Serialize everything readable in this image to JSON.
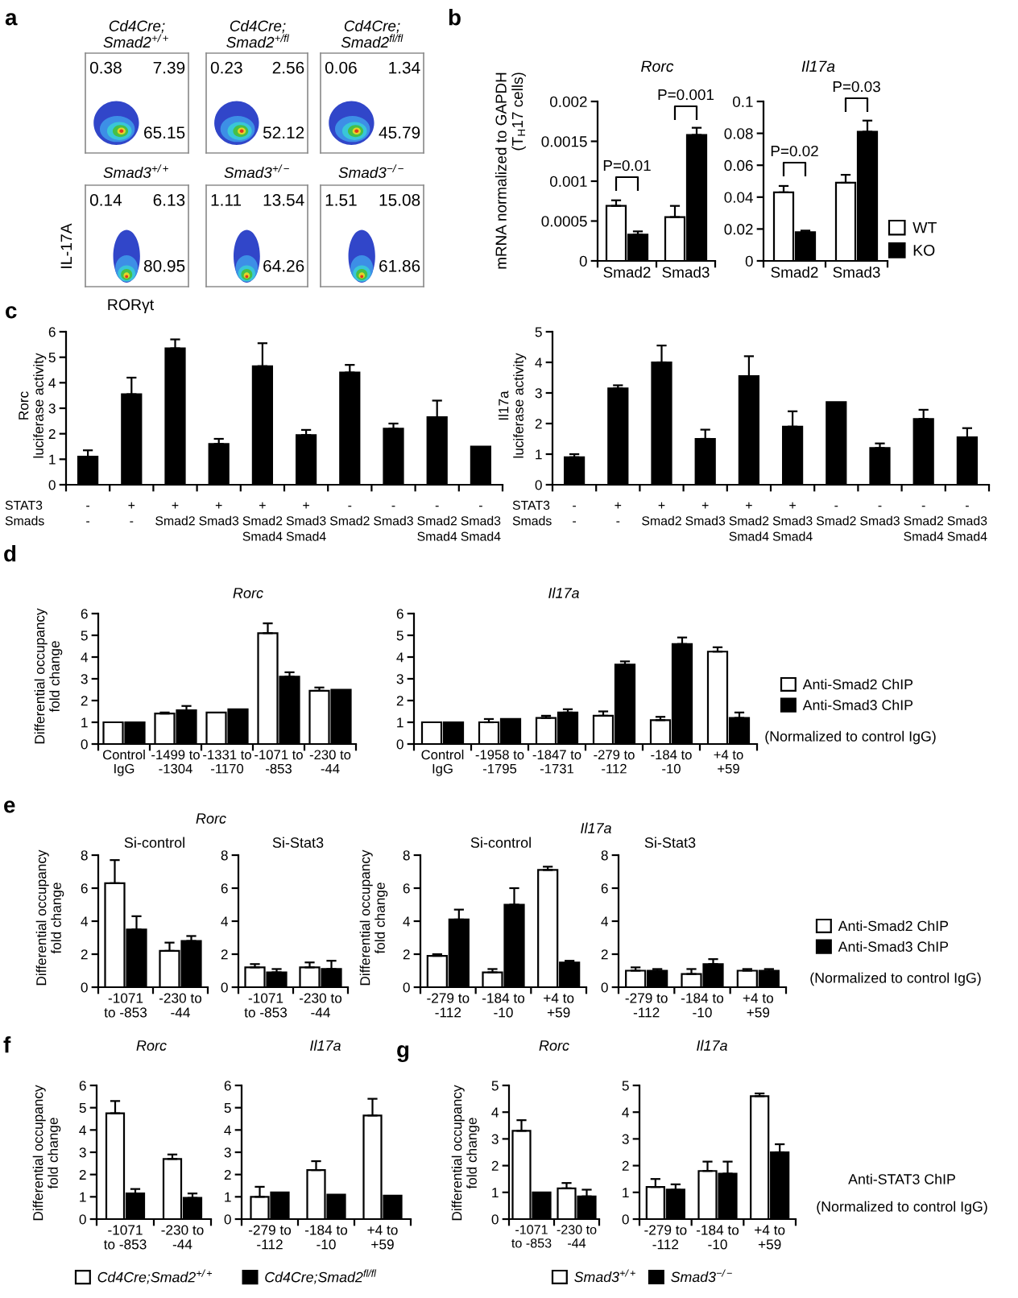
{
  "chart_data": [
    {
      "type": "other",
      "title": "Cd4Cre;\nSmad2$^{+/+}$",
      "annotations": [
        "a",
        "0.38",
        "7.39",
        "65.15"
      ]
    },
    {
      "type": "other",
      "title": "Cd4Cre;\nSmad2$^{+/fl}$",
      "annotations": [
        "0.23",
        "2.56",
        "52.12"
      ]
    },
    {
      "type": "other",
      "title": "Cd4Cre;\nSmad2$^{fl/fl}$",
      "annotations": [
        "0.06",
        "1.34",
        "45.79"
      ]
    },
    {
      "type": "other",
      "title": "Smad3$^{+/+}$",
      "xlabel": "RORγt",
      "ylabel": "IL-17A",
      "annotations": [
        "0.14",
        "6.13",
        "80.95"
      ]
    },
    {
      "type": "other",
      "title": "Smad3$^{+/−}$",
      "annotations": [
        "1.11",
        "13.54",
        "64.26"
      ]
    },
    {
      "type": "other",
      "title": "Smad3$^{−/−}$",
      "annotations": [
        "1.51",
        "15.08",
        "61.86"
      ]
    },
    {
      "type": "bar",
      "title": "Rorc",
      "ylabel": "mRNA normalized to GAPDH\n(T$_{H}$17 cells)",
      "categories": [
        "Smad2",
        "Smad3"
      ],
      "series": [
        {
          "color": "#ffffff",
          "values": [
            0.00069,
            0.00055
          ],
          "errors": [
            [
              0.00069,
              0.00076
            ],
            [
              0.00055,
              0.00069
            ]
          ]
        },
        {
          "color": "#000000",
          "values": [
            0.00033,
            0.00158
          ],
          "errors": [
            [
              0.00033,
              0.00037
            ],
            [
              0.00158,
              0.00167
            ]
          ]
        }
      ],
      "ylim": [
        0,
        0.002
      ],
      "yticks": [
        0,
        0.0005,
        0.001,
        0.0015,
        0.002
      ],
      "annotations": [
        "b",
        "P=0.01",
        "P=0.001"
      ]
    },
    {
      "type": "bar",
      "title": "Il17a",
      "categories": [
        "Smad2",
        "Smad3"
      ],
      "series": [
        {
          "name": "WT",
          "color": "#ffffff",
          "values": [
            0.043,
            0.049
          ],
          "errors": [
            [
              0.043,
              0.047
            ],
            [
              0.049,
              0.054
            ]
          ]
        },
        {
          "name": "KO",
          "color": "#000000",
          "values": [
            0.018,
            0.081
          ],
          "errors": [
            [
              0.018,
              0.019
            ],
            [
              0.081,
              0.088
            ]
          ]
        }
      ],
      "ylim": [
        0,
        0.1
      ],
      "yticks": [
        0,
        0.02,
        0.04,
        0.06,
        0.08,
        0.1
      ],
      "legend": "right",
      "annotations": [
        "P=0.02",
        "P=0.03"
      ]
    },
    {
      "type": "bar",
      "ylabel": "Rorc\nluciferase activity",
      "categories": [
        "-\n-",
        "+\n-",
        "+\nSmad2",
        "+\nSmad3",
        "+\nSmad2\nSmad4",
        "+\nSmad3\nSmad4",
        "-\nSmad2",
        "-\nSmad3",
        "-\nSmad2\nSmad4",
        "-\nSmad3\nSmad4"
      ],
      "color": "#000000",
      "values": [
        1.1,
        3.55,
        5.35,
        1.6,
        4.65,
        1.95,
        4.4,
        2.2,
        2.65,
        1.5
      ],
      "errors": [
        [
          1.1,
          1.35
        ],
        [
          3.55,
          4.2
        ],
        [
          5.35,
          5.7
        ],
        [
          1.6,
          1.8
        ],
        [
          4.65,
          5.55
        ],
        [
          1.95,
          2.15
        ],
        [
          4.4,
          4.7
        ],
        [
          2.2,
          2.4
        ],
        [
          2.65,
          3.3
        ],
        null
      ],
      "ylim": [
        0,
        6
      ],
      "yticks": [
        0,
        1,
        2,
        3,
        4,
        5,
        6
      ],
      "annotations": [
        "c",
        "STAT3\nSmads"
      ]
    },
    {
      "type": "bar",
      "ylabel": "Il17a\nluciferase activity",
      "categories": [
        "-\n-",
        "+\n-",
        "+\nSmad2",
        "+\nSmad3",
        "+\nSmad2\nSmad4",
        "+\nSmad3\nSmad4",
        "-\nSmad2",
        "-\nSmad3",
        "-\nSmad2\nSmad4",
        "-\nSmad3\nSmad4"
      ],
      "color": "#000000",
      "values": [
        0.9,
        3.15,
        4.0,
        1.5,
        3.55,
        1.9,
        2.7,
        1.2,
        2.15,
        1.55
      ],
      "errors": [
        [
          0.9,
          1.0
        ],
        [
          3.15,
          3.25
        ],
        [
          4.0,
          4.55
        ],
        [
          1.5,
          1.8
        ],
        [
          3.55,
          4.2
        ],
        [
          1.9,
          2.4
        ],
        null,
        [
          1.2,
          1.35
        ],
        [
          2.15,
          2.45
        ],
        [
          1.55,
          1.85
        ]
      ],
      "ylim": [
        0,
        5
      ],
      "yticks": [
        0,
        1,
        2,
        3,
        4,
        5
      ],
      "annotations": [
        "STAT3\nSmads"
      ]
    },
    {
      "type": "bar",
      "title": "Rorc",
      "ylabel": "Differential occupancy\nfold change",
      "categories": [
        "Control\nIgG",
        "-1499 to\n-1304",
        "-1331 to\n-1170",
        "-1071 to\n-853",
        "-230 to\n-44"
      ],
      "series": [
        {
          "color": "#ffffff",
          "values": [
            1.0,
            1.4,
            1.45,
            5.1,
            2.45
          ],
          "errors": [
            null,
            [
              1.4,
              1.45
            ],
            null,
            [
              5.1,
              5.55
            ],
            [
              2.45,
              2.6
            ]
          ]
        },
        {
          "color": "#000000",
          "values": [
            1.0,
            1.55,
            1.6,
            3.1,
            2.5
          ],
          "errors": [
            null,
            [
              1.55,
              1.75
            ],
            null,
            [
              3.1,
              3.3
            ],
            null
          ]
        }
      ],
      "ylim": [
        0,
        6
      ],
      "yticks": [
        0,
        1,
        2,
        3,
        4,
        5,
        6
      ],
      "annotations": [
        "d"
      ]
    },
    {
      "type": "bar",
      "title": "Il17a",
      "categories": [
        "Control\nIgG",
        "-1958 to\n-1795",
        "-1847 to\n-1731",
        "-279 to\n-112",
        "-184 to\n-10",
        "+4 to\n+59"
      ],
      "series": [
        {
          "name": "Anti-Smad2 ChIP",
          "color": "#ffffff",
          "values": [
            1.0,
            1.0,
            1.2,
            1.3,
            1.1,
            4.25
          ],
          "errors": [
            null,
            [
              1.0,
              1.15
            ],
            [
              1.2,
              1.3
            ],
            [
              1.3,
              1.5
            ],
            [
              1.1,
              1.25
            ],
            [
              4.25,
              4.45
            ]
          ]
        },
        {
          "name": "Anti-Smad3 ChIP",
          "color": "#000000",
          "values": [
            1.0,
            1.15,
            1.45,
            3.65,
            4.6,
            1.2
          ],
          "errors": [
            null,
            null,
            [
              1.45,
              1.6
            ],
            [
              3.65,
              3.8
            ],
            [
              4.6,
              4.9
            ],
            [
              1.2,
              1.45
            ]
          ]
        }
      ],
      "ylim": [
        0,
        6
      ],
      "yticks": [
        0,
        1,
        2,
        3,
        4,
        5,
        6
      ],
      "legend": "right",
      "annotations": [
        "(Normalized to control IgG)"
      ]
    },
    {
      "type": "bar",
      "title": "Rorc",
      "subtitle": "Si-control",
      "ylabel": "Differential occupancy\nfold change",
      "categories": [
        "-1071\nto -853",
        "-230 to\n-44"
      ],
      "series": [
        {
          "color": "#ffffff",
          "values": [
            6.3,
            2.2
          ],
          "errors": [
            [
              6.3,
              7.7
            ],
            [
              2.2,
              2.7
            ]
          ]
        },
        {
          "color": "#000000",
          "values": [
            3.5,
            2.8
          ],
          "errors": [
            [
              3.5,
              4.3
            ],
            [
              2.8,
              3.1
            ]
          ]
        }
      ],
      "ylim": [
        0,
        8
      ],
      "yticks": [
        0,
        2,
        4,
        6,
        8
      ],
      "annotations": [
        "e"
      ]
    },
    {
      "type": "bar",
      "subtitle": "Si-Stat3",
      "categories": [
        "-1071\nto -853",
        "-230 to\n-44"
      ],
      "series": [
        {
          "color": "#ffffff",
          "values": [
            1.2,
            1.2
          ],
          "errors": [
            [
              1.2,
              1.4
            ],
            [
              1.2,
              1.5
            ]
          ]
        },
        {
          "color": "#000000",
          "values": [
            0.9,
            1.1
          ],
          "errors": [
            [
              0.9,
              1.1
            ],
            [
              1.1,
              1.6
            ]
          ]
        }
      ],
      "ylim": [
        0,
        8
      ],
      "yticks": [
        0,
        2,
        4,
        6,
        8
      ]
    },
    {
      "type": "bar",
      "title": "Il17a",
      "subtitle": "Si-control",
      "ylabel": "Differential occupancy\nfold change",
      "categories": [
        "-279 to\n-112",
        "-184 to\n-10",
        "+4 to\n+59"
      ],
      "series": [
        {
          "color": "#ffffff",
          "values": [
            1.9,
            0.9,
            7.1
          ],
          "errors": [
            [
              1.9,
              2.0
            ],
            [
              0.9,
              1.1
            ],
            [
              7.1,
              7.3
            ]
          ]
        },
        {
          "color": "#000000",
          "values": [
            4.1,
            5.0,
            1.5
          ],
          "errors": [
            [
              4.1,
              4.7
            ],
            [
              5.0,
              6.0
            ],
            [
              1.5,
              1.6
            ]
          ]
        }
      ],
      "ylim": [
        0,
        8
      ],
      "yticks": [
        0,
        2,
        4,
        6,
        8
      ]
    },
    {
      "type": "bar",
      "subtitle": "Si-Stat3",
      "categories": [
        "-279 to\n-112",
        "-184 to\n-10",
        "+4 to\n+59"
      ],
      "series": [
        {
          "name": "Anti-Smad2 ChIP",
          "color": "#ffffff",
          "values": [
            1.0,
            0.8,
            1.0
          ],
          "errors": [
            [
              1.0,
              1.2
            ],
            [
              0.8,
              1.1
            ],
            [
              1.0,
              1.1
            ]
          ]
        },
        {
          "name": "Anti-Smad3 ChIP",
          "color": "#000000",
          "values": [
            1.0,
            1.4,
            1.0
          ],
          "errors": [
            [
              1.0,
              1.1
            ],
            [
              1.4,
              1.7
            ],
            [
              1.0,
              1.1
            ]
          ]
        }
      ],
      "ylim": [
        0,
        8
      ],
      "yticks": [
        0,
        2,
        4,
        6,
        8
      ],
      "legend": "right",
      "annotations": [
        "(Normalized to control IgG)"
      ]
    },
    {
      "type": "bar",
      "title": "Rorc",
      "ylabel": "Differential occupancy\nfold change",
      "categories": [
        "-1071\nto -853",
        "-230 to\n-44"
      ],
      "series": [
        {
          "name": "Cd4Cre;Smad2$^{+/+}$",
          "color": "#ffffff",
          "values": [
            4.75,
            2.7
          ],
          "errors": [
            [
              4.75,
              5.3
            ],
            [
              2.7,
              2.9
            ]
          ]
        },
        {
          "name": "Cd4Cre;Smad2$^{fl/fl}$",
          "color": "#000000",
          "values": [
            1.15,
            0.95
          ],
          "errors": [
            [
              1.15,
              1.35
            ],
            [
              0.95,
              1.15
            ]
          ]
        }
      ],
      "ylim": [
        0,
        6
      ],
      "yticks": [
        0,
        1,
        2,
        3,
        4,
        5,
        6
      ],
      "legend": "bottom",
      "annotations": [
        "f"
      ]
    },
    {
      "type": "bar",
      "title": "Il17a",
      "categories": [
        "-279 to\n-112",
        "-184 to\n-10",
        "+4 to\n+59"
      ],
      "series": [
        {
          "color": "#ffffff",
          "values": [
            1.0,
            2.2,
            4.65
          ],
          "errors": [
            [
              1.0,
              1.45
            ],
            [
              2.2,
              2.6
            ],
            [
              4.65,
              5.4
            ]
          ]
        },
        {
          "color": "#000000",
          "values": [
            1.2,
            1.1,
            1.05
          ]
        }
      ],
      "ylim": [
        0,
        6
      ],
      "yticks": [
        0,
        1,
        2,
        3,
        4,
        5,
        6
      ]
    },
    {
      "type": "bar",
      "title": "Rorc",
      "ylabel": "Differential occupancy\nfold change",
      "categories": [
        "-1071\nto -853",
        "-230 to\n-44"
      ],
      "series": [
        {
          "name": "Smad3$^{+/+}$",
          "color": "#ffffff",
          "values": [
            3.3,
            1.15
          ],
          "errors": [
            [
              3.3,
              3.7
            ],
            [
              1.15,
              1.35
            ]
          ]
        },
        {
          "name": "Smad3$^{−/−}$",
          "color": "#000000",
          "values": [
            1.0,
            0.85
          ],
          "errors": [
            null,
            [
              0.85,
              1.1
            ]
          ]
        }
      ],
      "ylim": [
        0,
        5
      ],
      "yticks": [
        0,
        1,
        2,
        3,
        4,
        5
      ],
      "legend": "bottom",
      "annotations": [
        "g"
      ]
    },
    {
      "type": "bar",
      "title": "Il17a",
      "categories": [
        "-279 to\n-112",
        "-184 to\n-10",
        "+4 to\n+59"
      ],
      "series": [
        {
          "color": "#ffffff",
          "values": [
            1.2,
            1.8,
            4.6
          ],
          "errors": [
            [
              1.2,
              1.5
            ],
            [
              1.8,
              2.15
            ],
            [
              4.6,
              4.7
            ]
          ]
        },
        {
          "color": "#000000",
          "values": [
            1.1,
            1.7,
            2.5
          ],
          "errors": [
            [
              1.1,
              1.3
            ],
            [
              1.7,
              2.15
            ],
            [
              2.5,
              2.8
            ]
          ]
        }
      ],
      "ylim": [
        0,
        5
      ],
      "yticks": [
        0,
        1,
        2,
        3,
        4,
        5
      ],
      "annotations": [
        "Anti-STAT3 ChIP",
        "(Normalized to control IgG)"
      ]
    }
  ]
}
